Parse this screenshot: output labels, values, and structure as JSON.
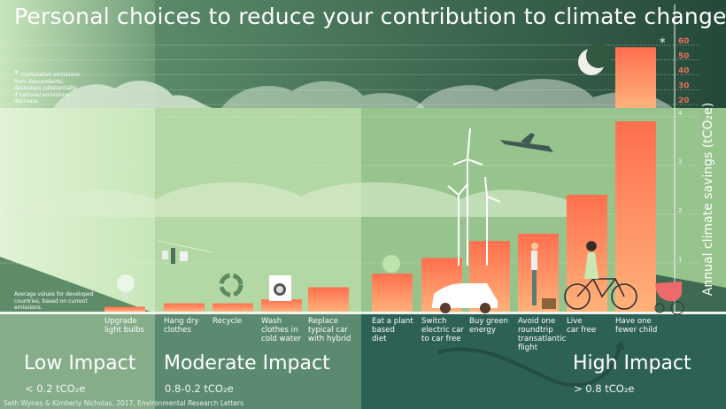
{
  "title": "Personal choices to reduce your contribution to climate change",
  "note_asterisk": "Cumulative emissions\nfrom descendants;\ndecreases substantially\nif national emissions\ndecrease.",
  "note_average": "Average values for developed\ncountries, based on current\nemissions.",
  "credit": "Seth Wynes & Kimberly Nicholas, 2017, Environmental Research Letters",
  "impact_levels": [
    {
      "name": "Low Impact",
      "range": "< 0.2 tCO₂e"
    },
    {
      "name": "Moderate Impact",
      "range": "0.8-0.2 tCO₂e"
    },
    {
      "name": "High Impact",
      "range": "> 0.8 tCO₂e"
    }
  ],
  "colors": {
    "bar_top": "#ff6f4e",
    "bar_bottom": "#ffb27a",
    "upper_tick": "#e8705a"
  },
  "chart_data": {
    "type": "bar",
    "ylabel": "Annual climate savings (tCO₂e)",
    "axis_break": true,
    "lower_ticks": [
      1,
      2,
      3,
      4
    ],
    "upper_ticks": [
      20,
      30,
      40,
      50,
      60
    ],
    "grid": true,
    "categories": [
      "Upgrade\nlight bulbs",
      "Hang dry\nclothes",
      "Recycle",
      "Wash\nclothes in\ncold water",
      "Replace\ntypical car\nwith hybrid",
      "Eat a plant\nbased\ndiet",
      "Switch\nelectric car\nto car free",
      "Buy green\nenergy",
      "Avoid one\nroundtrip\ntransatlantic\nflight",
      "Live\ncar free",
      "Have one\nfewer child"
    ],
    "values": [
      0.1,
      0.17,
      0.17,
      0.25,
      0.5,
      0.78,
      1.1,
      1.45,
      1.6,
      2.4,
      58.6
    ],
    "asterisk_on": "Have one\nfewer child"
  }
}
